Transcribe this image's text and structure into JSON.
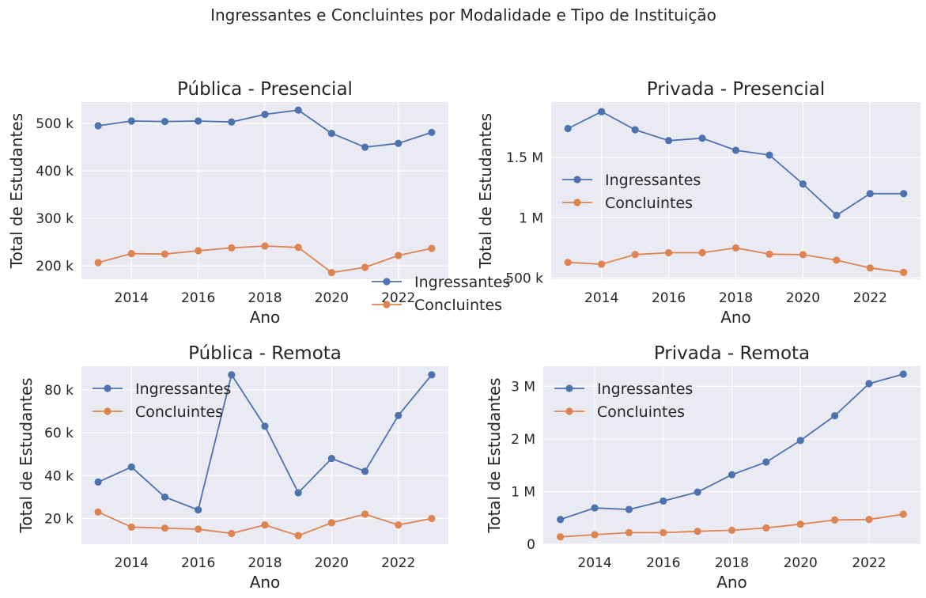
{
  "suptitle": "Ingressantes e Concluintes por Modalidade e Tipo de Instituição",
  "colors": {
    "Ingressantes": "#4c72b0",
    "Concluintes": "#dd8452"
  },
  "chart_data": [
    {
      "type": "line",
      "title": "Pública - Presencial",
      "xlabel": "Ano",
      "ylabel": "Total de Estudantes",
      "x": [
        2013,
        2014,
        2015,
        2016,
        2017,
        2018,
        2019,
        2020,
        2021,
        2022,
        2023
      ],
      "xlim": [
        2012.5,
        2023.5
      ],
      "xticks": [
        2014,
        2016,
        2018,
        2020,
        2022
      ],
      "ylim": [
        172000,
        545000
      ],
      "yticks": [
        200000,
        300000,
        400000,
        500000
      ],
      "ytick_labels": [
        "200 k",
        "300 k",
        "400 k",
        "500 k"
      ],
      "legend_position": "center-right",
      "series": [
        {
          "name": "Ingressantes",
          "values": [
            495000,
            505000,
            504000,
            505000,
            503000,
            519000,
            528000,
            479000,
            450000,
            458000,
            481000
          ]
        },
        {
          "name": "Concluintes",
          "values": [
            207000,
            226000,
            225000,
            232000,
            238000,
            242000,
            239000,
            186000,
            197000,
            222000,
            237000
          ]
        }
      ]
    },
    {
      "type": "line",
      "title": "Privada - Presencial",
      "xlabel": "Ano",
      "ylabel": "Total de Estudantes",
      "x": [
        2013,
        2014,
        2015,
        2016,
        2017,
        2018,
        2019,
        2020,
        2021,
        2022,
        2023
      ],
      "xlim": [
        2012.5,
        2023.5
      ],
      "xticks": [
        2014,
        2016,
        2018,
        2020,
        2022
      ],
      "ylim": [
        490000,
        1960000
      ],
      "yticks": [
        500000,
        1000000,
        1500000
      ],
      "ytick_labels": [
        "500 k",
        "1 M",
        "1.5 M"
      ],
      "legend_position": "center-left",
      "series": [
        {
          "name": "Ingressantes",
          "values": [
            1740000,
            1880000,
            1730000,
            1640000,
            1660000,
            1560000,
            1520000,
            1280000,
            1020000,
            1200000,
            1200000
          ]
        },
        {
          "name": "Concluintes",
          "values": [
            630000,
            615000,
            695000,
            710000,
            710000,
            750000,
            698000,
            694000,
            648000,
            583000,
            547000
          ]
        }
      ]
    },
    {
      "type": "line",
      "title": "Pública - Remota",
      "xlabel": "Ano",
      "ylabel": "Total de Estudantes",
      "x": [
        2013,
        2014,
        2015,
        2016,
        2017,
        2018,
        2019,
        2020,
        2021,
        2022,
        2023
      ],
      "xlim": [
        2012.5,
        2023.5
      ],
      "xticks": [
        2014,
        2016,
        2018,
        2020,
        2022
      ],
      "ylim": [
        8000,
        91000
      ],
      "yticks": [
        20000,
        40000,
        60000,
        80000
      ],
      "ytick_labels": [
        "20 k",
        "40 k",
        "60 k",
        "80 k"
      ],
      "legend_position": "upper-left",
      "series": [
        {
          "name": "Ingressantes",
          "values": [
            37000,
            44000,
            30000,
            24000,
            87000,
            63000,
            32000,
            48000,
            42000,
            68000,
            87000
          ]
        },
        {
          "name": "Concluintes",
          "values": [
            23000,
            16000,
            15500,
            15000,
            13000,
            17000,
            12000,
            18000,
            22000,
            17000,
            20000
          ]
        }
      ]
    },
    {
      "type": "line",
      "title": "Privada - Remota",
      "xlabel": "Ano",
      "ylabel": "Total de Estudantes",
      "x": [
        2013,
        2014,
        2015,
        2016,
        2017,
        2018,
        2019,
        2020,
        2021,
        2022,
        2023
      ],
      "xlim": [
        2012.5,
        2023.5
      ],
      "xticks": [
        2014,
        2016,
        2018,
        2020,
        2022
      ],
      "ylim": [
        0,
        3380000
      ],
      "yticks": [
        0,
        1000000,
        2000000,
        3000000
      ],
      "ytick_labels": [
        "0",
        "1 M",
        "2 M",
        "3 M"
      ],
      "legend_position": "upper-left",
      "series": [
        {
          "name": "Ingressantes",
          "values": [
            470000,
            690000,
            660000,
            820000,
            990000,
            1320000,
            1560000,
            1970000,
            2440000,
            3050000,
            3230000
          ]
        },
        {
          "name": "Concluintes",
          "values": [
            140000,
            180000,
            220000,
            220000,
            245000,
            265000,
            310000,
            380000,
            460000,
            470000,
            570000
          ]
        }
      ]
    }
  ]
}
